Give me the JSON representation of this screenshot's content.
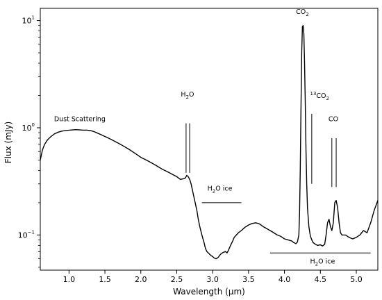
{
  "chart_data": {
    "type": "line",
    "title": "",
    "xlabel": "Wavelength (μm)",
    "ylabel": "Flux (mJy)",
    "xscale": "linear",
    "yscale": "log",
    "xlim": [
      0.6,
      5.3
    ],
    "ylim": [
      0.047,
      13
    ],
    "grid": false,
    "legend": "none",
    "line_color": "#000000",
    "x_ticks": [
      {
        "value": 1.0,
        "label": "1.0"
      },
      {
        "value": 1.5,
        "label": "1.5"
      },
      {
        "value": 2.0,
        "label": "2.0"
      },
      {
        "value": 2.5,
        "label": "2.5"
      },
      {
        "value": 3.0,
        "label": "3.0"
      },
      {
        "value": 3.5,
        "label": "3.5"
      },
      {
        "value": 4.0,
        "label": "4.0"
      },
      {
        "value": 4.5,
        "label": "4.5"
      },
      {
        "value": 5.0,
        "label": "5.0"
      }
    ],
    "y_ticks": [
      {
        "value": 0.1,
        "base": "10",
        "exp": "−1"
      },
      {
        "value": 1,
        "base": "10",
        "exp": "0"
      },
      {
        "value": 10,
        "base": "10",
        "exp": "1"
      }
    ],
    "series": [
      {
        "x": [
          0.6,
          0.63,
          0.66,
          0.7,
          0.75,
          0.8,
          0.85,
          0.9,
          0.95,
          1.0,
          1.05,
          1.1,
          1.15,
          1.2,
          1.25,
          1.3,
          1.35,
          1.4,
          1.45,
          1.5,
          1.55,
          1.6,
          1.65,
          1.7,
          1.75,
          1.8,
          1.85,
          1.9,
          1.95,
          2.0,
          2.05,
          2.1,
          2.15,
          2.2,
          2.25,
          2.3,
          2.35,
          2.4,
          2.45,
          2.5,
          2.55,
          2.6,
          2.62,
          2.64,
          2.66,
          2.68,
          2.7,
          2.72,
          2.75,
          2.78,
          2.8,
          2.82,
          2.85,
          2.88,
          2.9,
          2.92,
          2.95,
          2.98,
          3.0,
          3.02,
          3.05,
          3.08,
          3.1,
          3.12,
          3.15,
          3.18,
          3.2,
          3.22,
          3.25,
          3.28,
          3.3,
          3.33,
          3.36,
          3.4,
          3.45,
          3.5,
          3.55,
          3.6,
          3.65,
          3.7,
          3.75,
          3.8,
          3.85,
          3.9,
          3.95,
          4.0,
          4.05,
          4.1,
          4.13,
          4.16,
          4.18,
          4.2,
          4.21,
          4.22,
          4.23,
          4.24,
          4.25,
          4.26,
          4.27,
          4.28,
          4.29,
          4.3,
          4.31,
          4.32,
          4.34,
          4.36,
          4.38,
          4.4,
          4.43,
          4.46,
          4.5,
          4.53,
          4.56,
          4.58,
          4.6,
          4.62,
          4.64,
          4.66,
          4.68,
          4.7,
          4.72,
          4.74,
          4.76,
          4.78,
          4.8,
          4.85,
          4.9,
          4.95,
          5.0,
          5.05,
          5.1,
          5.15,
          5.2,
          5.25,
          5.3
        ],
        "y": [
          0.5,
          0.62,
          0.7,
          0.77,
          0.83,
          0.88,
          0.91,
          0.93,
          0.94,
          0.95,
          0.955,
          0.96,
          0.955,
          0.95,
          0.95,
          0.94,
          0.92,
          0.89,
          0.86,
          0.83,
          0.8,
          0.77,
          0.74,
          0.71,
          0.68,
          0.65,
          0.62,
          0.59,
          0.56,
          0.53,
          0.51,
          0.49,
          0.47,
          0.45,
          0.43,
          0.41,
          0.395,
          0.38,
          0.365,
          0.35,
          0.33,
          0.335,
          0.34,
          0.36,
          0.35,
          0.33,
          0.3,
          0.26,
          0.21,
          0.17,
          0.14,
          0.12,
          0.1,
          0.085,
          0.075,
          0.07,
          0.067,
          0.064,
          0.063,
          0.061,
          0.06,
          0.062,
          0.065,
          0.067,
          0.069,
          0.07,
          0.068,
          0.072,
          0.08,
          0.088,
          0.095,
          0.1,
          0.105,
          0.11,
          0.118,
          0.124,
          0.128,
          0.13,
          0.127,
          0.12,
          0.115,
          0.11,
          0.105,
          0.1,
          0.097,
          0.092,
          0.09,
          0.088,
          0.085,
          0.083,
          0.086,
          0.1,
          0.16,
          0.4,
          1.6,
          5.0,
          8.8,
          9.0,
          7.5,
          4.0,
          1.6,
          0.6,
          0.3,
          0.18,
          0.12,
          0.098,
          0.09,
          0.085,
          0.082,
          0.08,
          0.081,
          0.079,
          0.082,
          0.1,
          0.13,
          0.14,
          0.12,
          0.11,
          0.13,
          0.2,
          0.21,
          0.18,
          0.13,
          0.105,
          0.1,
          0.1,
          0.095,
          0.092,
          0.095,
          0.1,
          0.11,
          0.105,
          0.13,
          0.17,
          0.21
        ]
      }
    ],
    "annotations": {
      "dust": {
        "text": "Dust Scattering",
        "x": 1.15,
        "y": 1.15
      },
      "h2o": {
        "base": "H",
        "sub": "2",
        "tail": "O",
        "x": 2.65,
        "y": 1.95,
        "lines_x": [
          2.63,
          2.68
        ],
        "lines_y": [
          0.38,
          1.1
        ]
      },
      "co2": {
        "base": "CO",
        "sub": "2",
        "x": 4.25,
        "y": 11.5
      },
      "co2_13": {
        "sup": "13",
        "base": "CO",
        "sub": "2",
        "x": 4.49,
        "y": 1.9,
        "line_x": 4.38,
        "lines_y": [
          0.3,
          1.35
        ]
      },
      "co": {
        "base": "CO",
        "x": 4.68,
        "y": 1.15,
        "lines_x": [
          4.66,
          4.72
        ],
        "lines_y": [
          0.28,
          0.8
        ]
      },
      "h2o_ice_1": {
        "base": "H",
        "sub": "2",
        "tail": "O ice",
        "x": 3.1,
        "y": 0.26,
        "line_x": [
          2.85,
          3.4
        ],
        "line_y": 0.2
      },
      "h2o_ice_2": {
        "base": "H",
        "sub": "2",
        "tail": "O ice",
        "x": 4.53,
        "y": 0.054,
        "line_x": [
          3.8,
          5.2
        ],
        "line_y": 0.068
      }
    }
  }
}
